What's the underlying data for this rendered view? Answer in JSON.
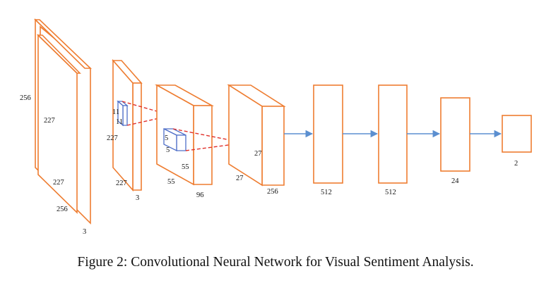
{
  "layers": [
    {
      "name": "input-1",
      "height_label": "256",
      "width_label": "227",
      "inner_label": "227",
      "front_label": "256",
      "depth_label": "3"
    },
    {
      "name": "input-2",
      "height_label": "227",
      "width_label": "227",
      "depth_label": "3",
      "kernel_label_a": "11",
      "kernel_label_b": "11"
    },
    {
      "name": "conv-1",
      "width_label": "55",
      "height_label": "55",
      "depth_label": "96",
      "kernel_label_a": "5",
      "kernel_label_b": "5"
    },
    {
      "name": "conv-2",
      "inner_label": "27",
      "width_label": "27",
      "depth_label": "256"
    },
    {
      "name": "fc-1",
      "size_label": "512"
    },
    {
      "name": "fc-2",
      "size_label": "512"
    },
    {
      "name": "fc-3",
      "size_label": "24"
    },
    {
      "name": "output",
      "size_label": "2"
    }
  ],
  "colors": {
    "layer": "#ee7d31",
    "kernel": "#4f6fc8",
    "projection": "#e0302a",
    "arrow": "#5b8fd0"
  },
  "caption": "Figure 2: Convolutional Neural Network for Visual Sentiment Analysis."
}
